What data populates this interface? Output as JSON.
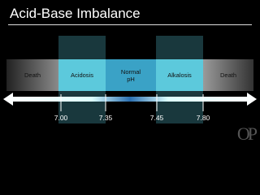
{
  "header": {
    "title": "Acid-Base Imbalance"
  },
  "segments": [
    {
      "label": "Death"
    },
    {
      "label": "Acidosis"
    },
    {
      "label": "Normal pH"
    },
    {
      "label": "Alkalosis"
    },
    {
      "label": "Death"
    }
  ],
  "ticks": [
    "7.00",
    "7.35",
    "7.45",
    "7.80"
  ],
  "logo": "OP"
}
